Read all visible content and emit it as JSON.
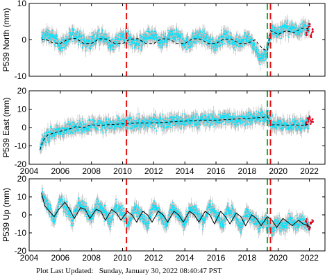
{
  "footer": {
    "label": "Plot Last Updated:",
    "value": "Sunday, January 30, 2022 08:40:47 PST"
  },
  "colors": {
    "error_bar": "#b8b8b8",
    "data": "#00e5ff",
    "recent": "#e0001b",
    "model": "#000000",
    "event_red": "#e01010",
    "event_green": "#1faa3a"
  },
  "chart_data": [
    {
      "type": "scatter",
      "station": "P539",
      "component": "North",
      "ylabel": "P539 North (mm)",
      "ylim": [
        -10,
        10
      ],
      "yticks": [
        -10,
        0,
        10
      ],
      "xlim": [
        2004,
        2023
      ],
      "xticks": [
        2004,
        2006,
        2008,
        2010,
        2012,
        2014,
        2016,
        2018,
        2020,
        2022
      ],
      "x_tick_labels_shown": false,
      "series": [
        {
          "role": "daily position",
          "color": "#00e5ff",
          "x": [
            2004.8,
            2005.2,
            2005.6,
            2006.0,
            2006.4,
            2006.8,
            2007.2,
            2007.6,
            2008.0,
            2008.4,
            2008.8,
            2009.2,
            2009.6,
            2010.0,
            2010.4,
            2010.8,
            2011.2,
            2011.6,
            2012.0,
            2012.4,
            2012.8,
            2013.2,
            2013.6,
            2014.0,
            2014.4,
            2014.8,
            2015.2,
            2015.6,
            2016.0,
            2016.4,
            2016.8,
            2017.2,
            2017.6,
            2018.0,
            2018.4,
            2018.8,
            2019.2,
            2019.6,
            2020.0,
            2020.4,
            2020.8,
            2021.2,
            2021.6,
            2022.0
          ],
          "y": [
            0.5,
            1.5,
            0.5,
            -1.5,
            -0.5,
            1.5,
            1.0,
            -1.0,
            -0.5,
            1.0,
            0.5,
            -1.5,
            -0.5,
            1.0,
            0.5,
            -1.0,
            -0.5,
            1.0,
            1.0,
            -1.0,
            0.0,
            1.5,
            1.0,
            -1.0,
            -0.5,
            1.0,
            1.0,
            -0.5,
            -1.5,
            1.0,
            0.5,
            -1.0,
            -0.5,
            1.0,
            -1.5,
            -5.0,
            -4.0,
            2.5,
            2.0,
            3.5,
            3.0,
            2.5,
            3.5,
            3.0
          ]
        },
        {
          "role": "model",
          "style": "dashed",
          "color": "#000000",
          "x": [
            2004.8,
            2005.0,
            2005.5,
            2006.0,
            2006.5,
            2007.0,
            2007.5,
            2008.0,
            2008.5,
            2009.0,
            2009.5,
            2010.0,
            2010.5,
            2011.0,
            2011.5,
            2012.0,
            2012.5,
            2013.0,
            2013.5,
            2014.0,
            2014.5,
            2015.0,
            2015.5,
            2016.0,
            2016.5,
            2017.0,
            2017.5,
            2018.0,
            2018.5,
            2019.0,
            2019.3,
            2019.5,
            2020.0,
            2020.5,
            2021.0,
            2021.5,
            2022.0
          ],
          "y": [
            0.0,
            0.3,
            -0.8,
            -1.0,
            0.2,
            0.4,
            -1.0,
            -1.0,
            0.3,
            0.2,
            -1.0,
            -1.0,
            0.2,
            0.3,
            -1.0,
            -1.0,
            0.3,
            0.2,
            -1.0,
            -1.0,
            0.3,
            0.2,
            -1.0,
            -1.0,
            0.2,
            0.2,
            -1.0,
            -1.0,
            0.0,
            -2.5,
            -3.0,
            2.5,
            1.5,
            2.5,
            2.0,
            3.2,
            3.0
          ]
        },
        {
          "role": "recent rapid",
          "color": "#e0001b",
          "x": [
            2021.8,
            2021.9,
            2022.0,
            2022.1,
            2022.2
          ],
          "y": [
            1.5,
            3.0,
            4.0,
            1.0,
            2.5
          ]
        }
      ],
      "events": [
        {
          "x": 2010.25,
          "color": "red"
        },
        {
          "x": 2019.3,
          "color": "green"
        },
        {
          "x": 2019.5,
          "color": "red"
        }
      ]
    },
    {
      "type": "scatter",
      "station": "P539",
      "component": "East",
      "ylabel": "P539 East (mm)",
      "ylim": [
        -20,
        20
      ],
      "yticks": [
        -20,
        -10,
        0,
        10,
        20
      ],
      "xlim": [
        2004,
        2023
      ],
      "xticks": [
        2004,
        2006,
        2008,
        2010,
        2012,
        2014,
        2016,
        2018,
        2020,
        2022
      ],
      "x_tick_labels_shown": true,
      "series": [
        {
          "role": "daily position",
          "color": "#00e5ff",
          "x": [
            2004.7,
            2004.9,
            2005.2,
            2005.6,
            2006.0,
            2006.5,
            2007.0,
            2007.5,
            2008.0,
            2008.5,
            2009.0,
            2009.5,
            2010.0,
            2010.5,
            2011.0,
            2011.5,
            2012.0,
            2012.5,
            2013.0,
            2013.5,
            2014.0,
            2014.5,
            2015.0,
            2015.5,
            2016.0,
            2016.5,
            2017.0,
            2017.5,
            2018.0,
            2018.5,
            2019.0,
            2019.3,
            2019.6,
            2020.0,
            2020.5,
            2021.0,
            2021.5,
            2022.0
          ],
          "y": [
            -12,
            -7,
            -4,
            -3,
            -2,
            -1,
            1,
            0,
            2,
            1,
            2,
            1,
            2,
            2,
            3,
            2,
            3,
            3,
            3,
            4,
            3,
            4,
            4,
            4,
            4,
            5,
            5,
            4,
            5,
            5,
            6,
            6,
            2,
            2,
            1,
            2,
            1,
            3
          ]
        },
        {
          "role": "model",
          "style": "dashed",
          "color": "#000000",
          "x": [
            2004.7,
            2004.9,
            2005.2,
            2005.6,
            2006.0,
            2006.5,
            2007.0,
            2007.5,
            2008.0,
            2008.5,
            2009.0,
            2010.0,
            2011.0,
            2012.0,
            2013.0,
            2014.0,
            2015.0,
            2016.0,
            2017.0,
            2018.0,
            2019.0,
            2019.3,
            2019.6,
            2020.0,
            2020.5,
            2021.0,
            2021.5,
            2022.0
          ],
          "y": [
            -12,
            -7,
            -4,
            -3,
            -2,
            -1,
            0.5,
            0,
            1.5,
            1,
            1.5,
            2,
            2.5,
            2.5,
            3,
            3.5,
            4,
            4,
            4.5,
            5,
            5.5,
            6,
            1.5,
            1.5,
            1,
            1.5,
            1,
            2
          ]
        },
        {
          "role": "recent rapid",
          "color": "#e0001b",
          "x": [
            2021.8,
            2021.9,
            2022.0,
            2022.1,
            2022.2
          ],
          "y": [
            2,
            4,
            5,
            3,
            4
          ]
        }
      ],
      "events": [
        {
          "x": 2010.25,
          "color": "red"
        },
        {
          "x": 2019.3,
          "color": "green"
        },
        {
          "x": 2019.5,
          "color": "red"
        }
      ]
    },
    {
      "type": "scatter",
      "station": "P539",
      "component": "Up",
      "ylabel": "P539 Up (mm)",
      "ylim": [
        -20,
        20
      ],
      "yticks": [
        -20,
        -10,
        0,
        10,
        20
      ],
      "xlim": [
        2004,
        2023
      ],
      "xticks": [
        2004,
        2006,
        2008,
        2010,
        2012,
        2014,
        2016,
        2018,
        2020,
        2022
      ],
      "x_tick_labels_shown": true,
      "series": [
        {
          "role": "daily position",
          "color": "#00e5ff",
          "x": [
            2004.8,
            2005.2,
            2005.6,
            2006.0,
            2006.4,
            2006.8,
            2007.2,
            2007.6,
            2008.0,
            2008.4,
            2008.8,
            2009.2,
            2009.6,
            2010.0,
            2010.4,
            2010.8,
            2011.2,
            2011.6,
            2012.0,
            2012.4,
            2012.8,
            2013.2,
            2013.6,
            2014.0,
            2014.4,
            2014.8,
            2015.2,
            2015.6,
            2016.0,
            2016.4,
            2016.8,
            2017.2,
            2017.6,
            2018.0,
            2018.4,
            2018.8,
            2019.2,
            2019.6,
            2020.0,
            2020.4,
            2020.8,
            2021.2,
            2021.6,
            2022.0
          ],
          "y": [
            12,
            5,
            -3,
            8,
            4,
            -3,
            7,
            3,
            -2,
            6,
            2,
            -4,
            5,
            1,
            -5,
            4,
            0,
            -6,
            5,
            1,
            -5,
            4,
            0,
            -5,
            4,
            1,
            -4,
            5,
            1,
            -6,
            3,
            0,
            -7,
            2,
            -2,
            -6,
            -3,
            -8,
            -4,
            -7,
            -2,
            -5,
            -3,
            -6
          ]
        },
        {
          "role": "model",
          "style": "solid",
          "color": "#000000",
          "x": [
            2004.8,
            2005.0,
            2005.3,
            2005.6,
            2005.9,
            2006.3,
            2006.6,
            2006.9,
            2007.3,
            2007.6,
            2007.9,
            2008.3,
            2008.6,
            2008.9,
            2009.3,
            2009.6,
            2009.9,
            2010.3,
            2010.6,
            2010.9,
            2011.3,
            2011.6,
            2011.9,
            2012.3,
            2012.6,
            2012.9,
            2013.3,
            2013.6,
            2013.9,
            2014.3,
            2014.6,
            2014.9,
            2015.3,
            2015.6,
            2015.9,
            2016.3,
            2016.6,
            2016.9,
            2017.3,
            2017.6,
            2017.9,
            2018.3,
            2018.6,
            2018.9,
            2019.3,
            2019.6,
            2019.9,
            2020.3,
            2020.6,
            2020.9,
            2021.3,
            2021.6,
            2021.9,
            2022.1
          ],
          "y": [
            12,
            5,
            2,
            -1,
            3,
            7,
            3,
            -2,
            4,
            3,
            -2,
            3,
            2,
            -3,
            3,
            1,
            -3,
            2,
            0,
            -4,
            2,
            0,
            -4,
            2,
            0,
            -4,
            2,
            0,
            -4,
            2,
            0,
            -4,
            2,
            0,
            -5,
            2,
            -1,
            -5,
            1,
            -1,
            -6,
            0,
            -2,
            -6,
            -1,
            -3,
            -7,
            -2,
            -4,
            -6,
            -3,
            -5,
            -6,
            -7
          ]
        },
        {
          "role": "recent rapid",
          "color": "#e0001b",
          "x": [
            2021.8,
            2021.9,
            2022.0,
            2022.1,
            2022.2
          ],
          "y": [
            -3,
            -6,
            -8,
            -5,
            -4
          ]
        }
      ],
      "events": [
        {
          "x": 2010.25,
          "color": "red"
        },
        {
          "x": 2019.3,
          "color": "green"
        },
        {
          "x": 2019.5,
          "color": "red"
        }
      ]
    }
  ]
}
